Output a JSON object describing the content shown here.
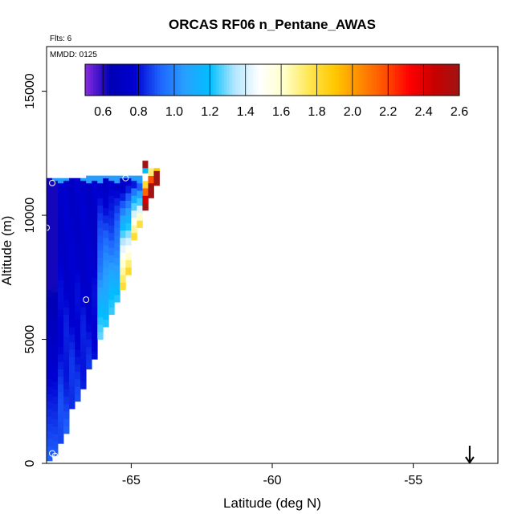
{
  "chart_data": {
    "type": "heatmap",
    "title": "ORCAS RF06 n_Pentane_AWAS",
    "annotations": {
      "flights": "Flts: 6",
      "date": "MMDD: 0125"
    },
    "xlabel": "Latitude (deg N)",
    "ylabel": "Altitude (m)",
    "xlim": [
      -68.0,
      -52.0
    ],
    "ylim": [
      0,
      16800
    ],
    "xticks": [
      -65,
      -60,
      -55
    ],
    "xtick_labels": [
      "-65",
      "-60",
      "-55"
    ],
    "yticks": [
      0,
      5000,
      10000,
      15000
    ],
    "ytick_labels": [
      "0",
      "5000",
      "10000",
      "15000"
    ],
    "colorbar": {
      "min": 0.5,
      "max": 2.6,
      "ticks": [
        0.6,
        0.8,
        1.0,
        1.2,
        1.4,
        1.6,
        1.8,
        2.0,
        2.2,
        2.4,
        2.6
      ],
      "tick_labels": [
        "0.6",
        "0.8",
        "1.0",
        "1.2",
        "1.4",
        "1.6",
        "1.8",
        "2.0",
        "2.2",
        "2.4",
        "2.6"
      ],
      "colors": [
        "#8a2be2",
        "#0000b4",
        "#0000d2",
        "#1e64ff",
        "#28a0ff",
        "#00bfff",
        "#b4e6ff",
        "#ffffff",
        "#ffffc8",
        "#ffe650",
        "#ffc800",
        "#ff8c00",
        "#ff5000",
        "#ff0000",
        "#c80000",
        "#a01414"
      ]
    },
    "grid": false,
    "region": {
      "lat_start": -67.9,
      "lat_step": 0.2,
      "alt_step": 300,
      "columns": [
        {
          "top": 11500,
          "bottom": 100
        },
        {
          "top": 11500,
          "bottom": 300
        },
        {
          "top": 11500,
          "bottom": 800
        },
        {
          "top": 11500,
          "bottom": 1200
        },
        {
          "top": 11500,
          "bottom": 2200
        },
        {
          "top": 11500,
          "bottom": 2500
        },
        {
          "top": 11500,
          "bottom": 3000
        },
        {
          "top": 11600,
          "bottom": 3800
        },
        {
          "top": 11600,
          "bottom": 4200
        },
        {
          "top": 11600,
          "bottom": 5000
        },
        {
          "top": 11600,
          "bottom": 5500
        },
        {
          "top": 11600,
          "bottom": 6000
        },
        {
          "top": 11600,
          "bottom": 6500
        },
        {
          "top": 11600,
          "bottom": 7000
        },
        {
          "top": 11600,
          "bottom": 7600
        },
        {
          "top": 11600,
          "bottom": 9000
        },
        {
          "top": 11600,
          "bottom": 9500
        },
        {
          "top": 11900,
          "bottom": 10200
        },
        {
          "top": 11900,
          "bottom": 10700
        },
        {
          "top": 11900,
          "bottom": 11200
        }
      ],
      "top_patch": {
        "lat": -64.5,
        "alt_low": 11900,
        "alt_high": 12200
      }
    },
    "sample_points": [
      {
        "lat": -67.8,
        "alt": 11300
      },
      {
        "lat": -68.0,
        "alt": 9500
      },
      {
        "lat": -65.2,
        "alt": 11500
      },
      {
        "lat": -66.6,
        "alt": 6600
      },
      {
        "lat": -67.8,
        "alt": 400
      },
      {
        "lat": -67.7,
        "alt": 300
      },
      {
        "lat": -67.6,
        "alt": 200
      }
    ],
    "marker": {
      "type": "down-arrow",
      "lat": -53.0
    }
  }
}
